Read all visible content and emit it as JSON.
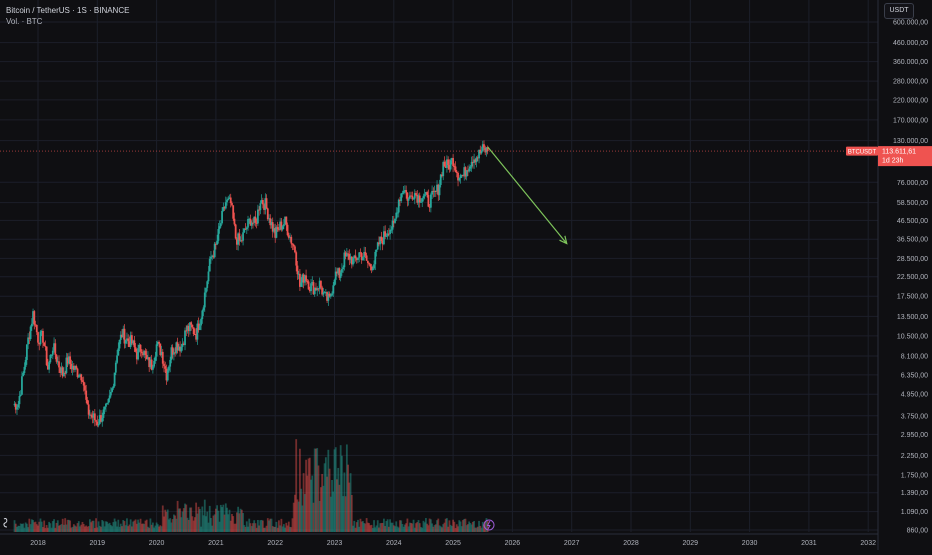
{
  "header": {
    "symbol_line": "Bitcoin / TetherUS · 1S · BINANCE",
    "volume_line": "Vol. · BTC"
  },
  "axis_unit": "USDT",
  "price_tag": {
    "symbol": "BTCUSDT",
    "price": "113.611,61",
    "countdown": "1d 23h",
    "value": 113611.61
  },
  "colors": {
    "background": "#0f0f12",
    "grid": "#1c1f2a",
    "up": "#26a69a",
    "down": "#ef5350",
    "arrow": "#7ec45b",
    "price_line": "#ef5350"
  },
  "chart_data": {
    "type": "line",
    "scale": "log",
    "ylim": [
      860,
      600000
    ],
    "y_ticks": [
      {
        "label": "600.000,00",
        "value": 600000
      },
      {
        "label": "460.000,00",
        "value": 460000
      },
      {
        "label": "360.000,00",
        "value": 360000
      },
      {
        "label": "280.000,00",
        "value": 280000
      },
      {
        "label": "220.000,00",
        "value": 220000
      },
      {
        "label": "170.000,00",
        "value": 170000
      },
      {
        "label": "130.000,00",
        "value": 130000
      },
      {
        "label": "76.000,00",
        "value": 76000
      },
      {
        "label": "58.500,00",
        "value": 58500
      },
      {
        "label": "46.500,00",
        "value": 46500
      },
      {
        "label": "36.500,00",
        "value": 36500
      },
      {
        "label": "28.500,00",
        "value": 28500
      },
      {
        "label": "22.500,00",
        "value": 22500
      },
      {
        "label": "17.500,00",
        "value": 17500
      },
      {
        "label": "13.500,00",
        "value": 13500
      },
      {
        "label": "10.500,00",
        "value": 10500
      },
      {
        "label": "8.100,00",
        "value": 8100
      },
      {
        "label": "6.350,00",
        "value": 6350
      },
      {
        "label": "4.950,00",
        "value": 4950
      },
      {
        "label": "3.750,00",
        "value": 3750
      },
      {
        "label": "2.950,00",
        "value": 2950
      },
      {
        "label": "2.250,00",
        "value": 2250
      },
      {
        "label": "1.750,00",
        "value": 1750
      },
      {
        "label": "1.390,00",
        "value": 1390
      },
      {
        "label": "1.090,00",
        "value": 1090
      },
      {
        "label": "860,00",
        "value": 860
      }
    ],
    "x_ticks": [
      "2018",
      "2019",
      "2020",
      "2021",
      "2022",
      "2023",
      "2024",
      "2025",
      "2026",
      "2027",
      "2028",
      "2029",
      "2030",
      "2031",
      "2032"
    ],
    "series": [
      {
        "values": [
          [
            "2017-08",
            4300
          ],
          [
            "2017-09",
            4400
          ],
          [
            "2017-10",
            6400
          ],
          [
            "2017-11",
            10000
          ],
          [
            "2017-12",
            14000
          ],
          [
            "2018-01",
            10200
          ],
          [
            "2018-02",
            10300
          ],
          [
            "2018-03",
            6900
          ],
          [
            "2018-04",
            9200
          ],
          [
            "2018-05",
            7500
          ],
          [
            "2018-06",
            6400
          ],
          [
            "2018-07",
            7700
          ],
          [
            "2018-08",
            7000
          ],
          [
            "2018-09",
            6600
          ],
          [
            "2018-10",
            6300
          ],
          [
            "2018-11",
            4000
          ],
          [
            "2018-12",
            3700
          ],
          [
            "2019-01",
            3450
          ],
          [
            "2019-02",
            3800
          ],
          [
            "2019-03",
            4100
          ],
          [
            "2019-04",
            5300
          ],
          [
            "2019-05",
            8600
          ],
          [
            "2019-06",
            10800
          ],
          [
            "2019-07",
            10000
          ],
          [
            "2019-08",
            9600
          ],
          [
            "2019-09",
            8300
          ],
          [
            "2019-10",
            9150
          ],
          [
            "2019-11",
            7550
          ],
          [
            "2019-12",
            7200
          ],
          [
            "2020-01",
            9350
          ],
          [
            "2020-02",
            8550
          ],
          [
            "2020-03",
            6400
          ],
          [
            "2020-04",
            8600
          ],
          [
            "2020-05",
            9450
          ],
          [
            "2020-06",
            9150
          ],
          [
            "2020-07",
            11350
          ],
          [
            "2020-08",
            11650
          ],
          [
            "2020-09",
            10800
          ],
          [
            "2020-10",
            13800
          ],
          [
            "2020-11",
            19700
          ],
          [
            "2020-12",
            29000
          ],
          [
            "2021-01",
            33100
          ],
          [
            "2021-02",
            45200
          ],
          [
            "2021-03",
            58800
          ],
          [
            "2021-04",
            57700
          ],
          [
            "2021-05",
            37300
          ],
          [
            "2021-06",
            35000
          ],
          [
            "2021-07",
            41500
          ],
          [
            "2021-08",
            47100
          ],
          [
            "2021-09",
            43800
          ],
          [
            "2021-10",
            61300
          ],
          [
            "2021-11",
            57000
          ],
          [
            "2021-12",
            46300
          ],
          [
            "2022-01",
            38500
          ],
          [
            "2022-02",
            43200
          ],
          [
            "2022-03",
            45500
          ],
          [
            "2022-04",
            37700
          ],
          [
            "2022-05",
            31800
          ],
          [
            "2022-06",
            19900
          ],
          [
            "2022-07",
            23300
          ],
          [
            "2022-08",
            20000
          ],
          [
            "2022-09",
            19400
          ],
          [
            "2022-10",
            20500
          ],
          [
            "2022-11",
            17200
          ],
          [
            "2022-12",
            16500
          ],
          [
            "2023-01",
            23100
          ],
          [
            "2023-02",
            23100
          ],
          [
            "2023-03",
            28500
          ],
          [
            "2023-04",
            29200
          ],
          [
            "2023-05",
            27200
          ],
          [
            "2023-06",
            30500
          ],
          [
            "2023-07",
            29200
          ],
          [
            "2023-08",
            25900
          ],
          [
            "2023-09",
            27000
          ],
          [
            "2023-10",
            34500
          ],
          [
            "2023-11",
            37700
          ],
          [
            "2023-12",
            42300
          ],
          [
            "2024-01",
            42600
          ],
          [
            "2024-02",
            61100
          ],
          [
            "2024-03",
            71300
          ],
          [
            "2024-04",
            60600
          ],
          [
            "2024-05",
            67500
          ],
          [
            "2024-06",
            62700
          ],
          [
            "2024-07",
            64600
          ],
          [
            "2024-08",
            58900
          ],
          [
            "2024-09",
            63300
          ],
          [
            "2024-10",
            70200
          ],
          [
            "2024-11",
            96400
          ],
          [
            "2024-12",
            93400
          ],
          [
            "2025-01",
            102400
          ],
          [
            "2025-02",
            84300
          ],
          [
            "2025-03",
            82500
          ],
          [
            "2025-04",
            94200
          ],
          [
            "2025-05",
            104600
          ],
          [
            "2025-06",
            107100
          ],
          [
            "2025-07",
            115700
          ],
          [
            "2025-08",
            113600
          ]
        ]
      }
    ],
    "volume_unit": "BTC",
    "projection_arrow": {
      "from": [
        "2025-08",
        120000
      ],
      "to": [
        "2026-12",
        34500
      ]
    }
  }
}
